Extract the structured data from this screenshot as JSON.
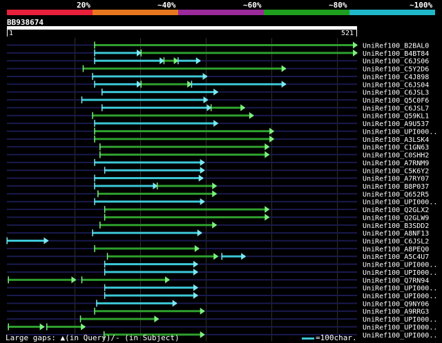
{
  "legend": {
    "segments": [
      {
        "label": "20%",
        "color": "#e8203c"
      },
      {
        "label": "~40%",
        "color": "#e87820"
      },
      {
        "label": "~60%",
        "color": "#9b2a9b"
      },
      {
        "label": "~80%",
        "color": "#1ea01e"
      },
      {
        "label": "~100%",
        "color": "#20b8c8"
      }
    ]
  },
  "query": {
    "name": "BB938674",
    "start": "1",
    "end": "521",
    "length": 521
  },
  "colors": {
    "green": "#2ea02e",
    "cyan": "#3cc8d8",
    "arrowGreen": "#7cf07c",
    "arrowCyan": "#7ce8f0",
    "track": "#1a1a50",
    "grid": "#303030"
  },
  "hits": [
    {
      "label": "UniRef100_B2BAL0",
      "segs": [
        {
          "s": 131,
          "e": 521,
          "c": "green"
        }
      ],
      "mark": 131
    },
    {
      "label": "UniRef100_B4BT84",
      "segs": [
        {
          "s": 131,
          "e": 200,
          "c": "cyan"
        },
        {
          "s": 200,
          "e": 521,
          "c": "green"
        }
      ]
    },
    {
      "label": "UniRef100_C6JS06",
      "segs": [
        {
          "s": 131,
          "e": 234,
          "c": "cyan"
        },
        {
          "s": 234,
          "e": 255,
          "c": "green"
        },
        {
          "s": 255,
          "e": 288,
          "c": "cyan"
        }
      ]
    },
    {
      "label": "UniRef100_C5Y2D6",
      "segs": [
        {
          "s": 114,
          "e": 415,
          "c": "green"
        }
      ]
    },
    {
      "label": "UniRef100_C4J898",
      "segs": [
        {
          "s": 128,
          "e": 298,
          "c": "cyan"
        }
      ]
    },
    {
      "label": "UniRef100_C6JS04",
      "segs": [
        {
          "s": 131,
          "e": 200,
          "c": "cyan"
        },
        {
          "s": 200,
          "e": 275,
          "c": "green"
        },
        {
          "s": 275,
          "e": 415,
          "c": "cyan"
        }
      ]
    },
    {
      "label": "UniRef100_C6JSL3",
      "segs": [
        {
          "s": 142,
          "e": 314,
          "c": "cyan"
        }
      ]
    },
    {
      "label": "UniRef100_Q5C0F6",
      "segs": [
        {
          "s": 112,
          "e": 299,
          "c": "cyan"
        }
      ]
    },
    {
      "label": "UniRef100_C6JSL7",
      "segs": [
        {
          "s": 142,
          "e": 304,
          "c": "cyan"
        },
        {
          "s": 304,
          "e": 354,
          "c": "green"
        }
      ]
    },
    {
      "label": "UniRef100_Q59KL1",
      "segs": [
        {
          "s": 128,
          "e": 367,
          "c": "green"
        }
      ]
    },
    {
      "label": "UniRef100_A9U537",
      "segs": [
        {
          "s": 131,
          "e": 314,
          "c": "cyan"
        }
      ]
    },
    {
      "label": "UniRef100_UPI000..",
      "segs": [
        {
          "s": 131,
          "e": 397,
          "c": "green"
        }
      ]
    },
    {
      "label": "UniRef100_A3LSK4",
      "segs": [
        {
          "s": 131,
          "e": 397,
          "c": "green"
        }
      ]
    },
    {
      "label": "UniRef100_C1GN63",
      "segs": [
        {
          "s": 139,
          "e": 390,
          "c": "green"
        }
      ]
    },
    {
      "label": "UniRef100_C0SHH2",
      "segs": [
        {
          "s": 139,
          "e": 390,
          "c": "green"
        }
      ]
    },
    {
      "label": "UniRef100_A7RNM9",
      "segs": [
        {
          "s": 131,
          "e": 294,
          "c": "cyan"
        }
      ]
    },
    {
      "label": "UniRef100_C5K6Y2",
      "segs": [
        {
          "s": 146,
          "e": 294,
          "c": "cyan"
        }
      ]
    },
    {
      "label": "UniRef100_A7RY07",
      "segs": [
        {
          "s": 131,
          "e": 292,
          "c": "cyan"
        }
      ]
    },
    {
      "label": "UniRef100_B8P037",
      "segs": [
        {
          "s": 131,
          "e": 224,
          "c": "cyan"
        },
        {
          "s": 224,
          "e": 312,
          "c": "green"
        }
      ]
    },
    {
      "label": "UniRef100_Q652R5",
      "segs": [
        {
          "s": 136,
          "e": 312,
          "c": "green"
        }
      ]
    },
    {
      "label": "UniRef100_UPI000..",
      "segs": [
        {
          "s": 131,
          "e": 294,
          "c": "cyan"
        }
      ]
    },
    {
      "label": "UniRef100_Q2GLX2",
      "segs": [
        {
          "s": 146,
          "e": 390,
          "c": "green"
        }
      ]
    },
    {
      "label": "UniRef100_Q2GLW9",
      "segs": [
        {
          "s": 146,
          "e": 390,
          "c": "green"
        }
      ]
    },
    {
      "label": "UniRef100_B3SDD2",
      "segs": [
        {
          "s": 139,
          "e": 312,
          "c": "green"
        }
      ]
    },
    {
      "label": "UniRef100_A8NF13",
      "segs": [
        {
          "s": 128,
          "e": 290,
          "c": "cyan"
        }
      ]
    },
    {
      "label": "UniRef100_C6JSL2",
      "segs": [
        {
          "s": 1,
          "e": 62,
          "c": "cyan"
        }
      ]
    },
    {
      "label": "UniRef100_A8PEQ0",
      "segs": [
        {
          "s": 131,
          "e": 286,
          "c": "green"
        }
      ]
    },
    {
      "label": "UniRef100_A5C4U7",
      "segs": [
        {
          "s": 150,
          "e": 314,
          "c": "green"
        },
        {
          "s": 320,
          "e": 355,
          "c": "cyan"
        }
      ]
    },
    {
      "label": "UniRef100_UPI000..",
      "segs": [
        {
          "s": 146,
          "e": 284,
          "c": "cyan"
        }
      ]
    },
    {
      "label": "UniRef100_UPI000..",
      "segs": [
        {
          "s": 146,
          "e": 284,
          "c": "cyan"
        }
      ]
    },
    {
      "label": "UniRef100_Q7RN94",
      "segs": [
        {
          "s": 3,
          "e": 103,
          "c": "green"
        },
        {
          "s": 112,
          "e": 242,
          "c": "green"
        }
      ]
    },
    {
      "label": "UniRef100_UPI000..",
      "segs": [
        {
          "s": 146,
          "e": 284,
          "c": "cyan"
        }
      ]
    },
    {
      "label": "UniRef100_UPI000..",
      "segs": [
        {
          "s": 146,
          "e": 284,
          "c": "cyan"
        }
      ]
    },
    {
      "label": "UniRef100_Q9NY06",
      "segs": [
        {
          "s": 134,
          "e": 253,
          "c": "cyan"
        }
      ]
    },
    {
      "label": "UniRef100_A9RRG3",
      "segs": [
        {
          "s": 131,
          "e": 294,
          "c": "green"
        }
      ]
    },
    {
      "label": "UniRef100_UPI000..",
      "segs": [
        {
          "s": 110,
          "e": 226,
          "c": "green"
        }
      ]
    },
    {
      "label": "UniRef100_UPI000..",
      "segs": [
        {
          "s": 3,
          "e": 56,
          "c": "green"
        },
        {
          "s": 60,
          "e": 117,
          "c": "green"
        }
      ]
    },
    {
      "label": "UniRef100_UPI000..",
      "segs": [
        {
          "s": 145,
          "e": 294,
          "c": "green"
        }
      ]
    }
  ],
  "footer": {
    "text": "Large gaps: ▲(in Query)/‐ (in Subject)",
    "scale": "=100char."
  }
}
